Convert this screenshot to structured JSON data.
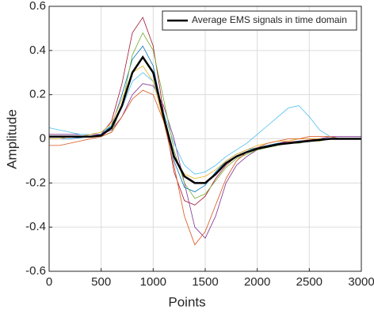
{
  "chart_data": {
    "type": "line",
    "xlabel": "Points",
    "ylabel": "Amplitude",
    "x": [
      0,
      100,
      200,
      300,
      400,
      500,
      600,
      700,
      800,
      900,
      1000,
      1100,
      1200,
      1300,
      1400,
      1500,
      1600,
      1700,
      1800,
      1900,
      2000,
      2100,
      2200,
      2300,
      2400,
      2500,
      2600,
      2700,
      2800,
      2900,
      3000
    ],
    "series": [
      {
        "name": "Average EMS signals in time domain",
        "color": "#000000",
        "values": [
          0.01,
          0.01,
          0.01,
          0.01,
          0.01,
          0.015,
          0.05,
          0.15,
          0.3,
          0.37,
          0.3,
          0.1,
          -0.08,
          -0.17,
          -0.2,
          -0.2,
          -0.16,
          -0.11,
          -0.08,
          -0.06,
          -0.045,
          -0.035,
          -0.025,
          -0.02,
          -0.015,
          -0.01,
          -0.005,
          0,
          0,
          0,
          0
        ]
      },
      {
        "color": "#a2142f",
        "values": [
          0.01,
          0.01,
          0.01,
          0.01,
          0.01,
          0.02,
          0.08,
          0.25,
          0.48,
          0.55,
          0.42,
          0.12,
          -0.15,
          -0.28,
          -0.3,
          -0.26,
          -0.18,
          -0.12,
          -0.08,
          -0.06,
          -0.04,
          -0.03,
          -0.02,
          -0.015,
          -0.01,
          -0.005,
          0,
          0,
          0,
          0,
          0
        ]
      },
      {
        "color": "#7e2f8e",
        "values": [
          0.02,
          0.02,
          0.02,
          0.02,
          0.02,
          0.02,
          0.04,
          0.1,
          0.2,
          0.25,
          0.24,
          0.15,
          0,
          -0.2,
          -0.4,
          -0.45,
          -0.35,
          -0.2,
          -0.12,
          -0.08,
          -0.05,
          -0.03,
          -0.02,
          -0.01,
          0,
          0,
          0,
          0.01,
          0.01,
          0.01,
          0.01
        ]
      },
      {
        "color": "#0072bd",
        "values": [
          0,
          0,
          0,
          0.005,
          0.01,
          0.02,
          0.06,
          0.2,
          0.36,
          0.42,
          0.33,
          0.1,
          -0.1,
          -0.22,
          -0.24,
          -0.21,
          -0.15,
          -0.1,
          -0.07,
          -0.05,
          -0.04,
          -0.03,
          -0.02,
          -0.02,
          -0.01,
          -0.01,
          0,
          0,
          0,
          0,
          0
        ]
      },
      {
        "color": "#4dbeee",
        "values": [
          0.05,
          0.04,
          0.03,
          0.02,
          0.02,
          0.03,
          0.06,
          0.14,
          0.26,
          0.3,
          0.26,
          0.12,
          -0.02,
          -0.12,
          -0.16,
          -0.15,
          -0.12,
          -0.08,
          -0.05,
          -0.02,
          0.02,
          0.06,
          0.1,
          0.14,
          0.15,
          0.1,
          0.04,
          0.01,
          0,
          0,
          0
        ]
      },
      {
        "color": "#77ac30",
        "values": [
          0.01,
          0.01,
          0.01,
          0.01,
          0.01,
          0.01,
          0.03,
          0.15,
          0.38,
          0.48,
          0.4,
          0.18,
          -0.05,
          -0.2,
          -0.27,
          -0.25,
          -0.19,
          -0.13,
          -0.09,
          -0.07,
          -0.05,
          -0.04,
          -0.03,
          -0.02,
          -0.02,
          -0.01,
          -0.01,
          0,
          0,
          0,
          0
        ]
      },
      {
        "color": "#edb120",
        "values": [
          0,
          0,
          0.01,
          0.01,
          0.02,
          0.03,
          0.07,
          0.18,
          0.3,
          0.33,
          0.26,
          0.08,
          -0.08,
          -0.16,
          -0.18,
          -0.17,
          -0.14,
          -0.1,
          -0.07,
          -0.05,
          -0.03,
          -0.02,
          -0.01,
          -0.01,
          0,
          0,
          0,
          0,
          0,
          0,
          0
        ]
      },
      {
        "color": "#d95319",
        "values": [
          -0.03,
          -0.03,
          -0.02,
          -0.01,
          0,
          0.01,
          0.03,
          0.1,
          0.18,
          0.22,
          0.2,
          0.08,
          -0.12,
          -0.35,
          -0.48,
          -0.42,
          -0.3,
          -0.18,
          -0.1,
          -0.06,
          -0.04,
          -0.02,
          -0.01,
          0,
          0,
          0.01,
          0.01,
          0.01,
          0,
          0,
          0
        ]
      }
    ],
    "xlim": [
      0,
      3000
    ],
    "xticks": [
      0,
      500,
      1000,
      1500,
      2000,
      2500,
      3000
    ],
    "ylim": [
      -0.6,
      0.6
    ],
    "yticks": [
      -0.6,
      -0.4,
      -0.2,
      0,
      0.2,
      0.4,
      0.6
    ],
    "grid": true,
    "legend": "upper right"
  }
}
